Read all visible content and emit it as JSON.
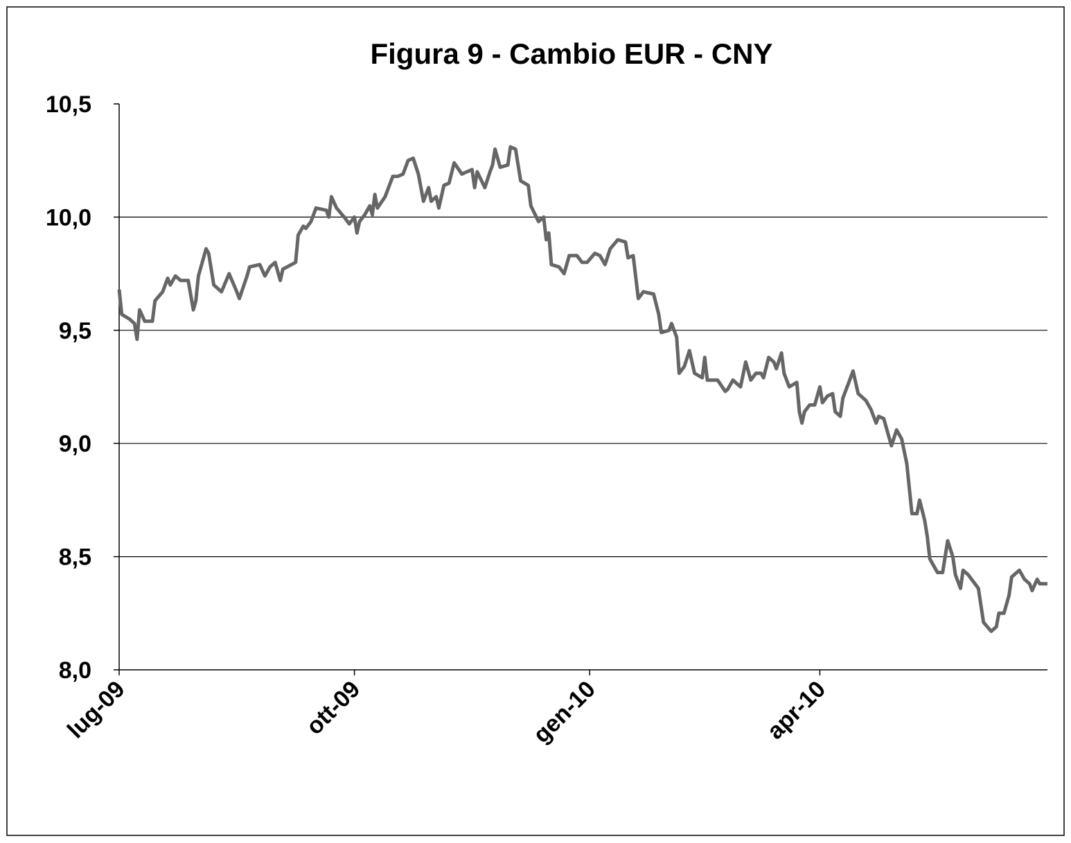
{
  "chart_data": {
    "type": "line",
    "title": "Figura 9 - Cambio EUR - CNY",
    "x": [
      0,
      1,
      4,
      6,
      7,
      8,
      10,
      13,
      14,
      17,
      19,
      20,
      22,
      24,
      27,
      29,
      30,
      31,
      34,
      35,
      37,
      40,
      43,
      46,
      47,
      50,
      51,
      55,
      57,
      59,
      61,
      63,
      64,
      69,
      70,
      72,
      73,
      75,
      77,
      81,
      82,
      83,
      85,
      88,
      90,
      92,
      93,
      94,
      96,
      98,
      99,
      100,
      101,
      104,
      106,
      107,
      109,
      111,
      113,
      115,
      117,
      119,
      121,
      122,
      124,
      125,
      127,
      129,
      131,
      134,
      136,
      138,
      139,
      140,
      143,
      145,
      146,
      147,
      149,
      152,
      153,
      155,
      157,
      160,
      161,
      164,
      166,
      167,
      168,
      169,
      172,
      174,
      176,
      179,
      181,
      183,
      186,
      188,
      190,
      192,
      195,
      198,
      199,
      201,
      203,
      205,
      209,
      211,
      212,
      215,
      216,
      218,
      219,
      221,
      223,
      225,
      228,
      229,
      230,
      233,
      234,
      237,
      238,
      240,
      241,
      243,
      245,
      247,
      249,
      251,
      252,
      254,
      256,
      257,
      259,
      260,
      262,
      265,
      266,
      267,
      268,
      270,
      272,
      274,
      275,
      277,
      279,
      280,
      282,
      283,
      285,
      287,
      289,
      292,
      294,
      296,
      297,
      299,
      302,
      304,
      306,
      308,
      309,
      310,
      312,
      313,
      315,
      316,
      317,
      320,
      322,
      324,
      326,
      327,
      329,
      330,
      332,
      334,
      336,
      338,
      341,
      343,
      344,
      346,
      348,
      349,
      350,
      352,
      354,
      356,
      357,
      359,
      360,
      363
    ],
    "series": [
      {
        "color": "#666666",
        "values": [
          9.68,
          9.57,
          9.55,
          9.53,
          9.46,
          9.59,
          9.54,
          9.54,
          9.63,
          9.67,
          9.73,
          9.7,
          9.74,
          9.72,
          9.72,
          9.59,
          9.63,
          9.74,
          9.86,
          9.84,
          9.7,
          9.67,
          9.75,
          9.67,
          9.64,
          9.74,
          9.78,
          9.79,
          9.74,
          9.78,
          9.8,
          9.72,
          9.77,
          9.8,
          9.92,
          9.96,
          9.95,
          9.98,
          10.04,
          10.03,
          10.0,
          10.09,
          10.04,
          10.0,
          9.97,
          10.0,
          9.93,
          9.98,
          10.01,
          10.05,
          10.01,
          10.1,
          10.04,
          10.09,
          10.15,
          10.18,
          10.18,
          10.19,
          10.25,
          10.26,
          10.19,
          10.07,
          10.13,
          10.07,
          10.09,
          10.04,
          10.14,
          10.15,
          10.24,
          10.19,
          10.2,
          10.21,
          10.13,
          10.2,
          10.13,
          10.2,
          10.23,
          10.3,
          10.22,
          10.23,
          10.31,
          10.3,
          10.16,
          10.14,
          10.05,
          9.98,
          10.0,
          9.9,
          9.93,
          9.79,
          9.78,
          9.75,
          9.83,
          9.83,
          9.8,
          9.8,
          9.84,
          9.83,
          9.79,
          9.86,
          9.9,
          9.89,
          9.82,
          9.83,
          9.64,
          9.67,
          9.66,
          9.57,
          9.49,
          9.5,
          9.53,
          9.47,
          9.31,
          9.34,
          9.41,
          9.31,
          9.29,
          9.38,
          9.28,
          9.28,
          9.28,
          9.23,
          9.24,
          9.28,
          9.27,
          9.25,
          9.36,
          9.28,
          9.31,
          9.31,
          9.29,
          9.38,
          9.36,
          9.33,
          9.4,
          9.31,
          9.25,
          9.27,
          9.14,
          9.09,
          9.14,
          9.17,
          9.17,
          9.25,
          9.18,
          9.21,
          9.22,
          9.14,
          9.12,
          9.2,
          9.26,
          9.32,
          9.22,
          9.19,
          9.15,
          9.09,
          9.12,
          9.11,
          8.99,
          9.06,
          9.02,
          8.91,
          8.8,
          8.69,
          8.69,
          8.75,
          8.66,
          8.59,
          8.49,
          8.43,
          8.43,
          8.57,
          8.5,
          8.42,
          8.36,
          8.44,
          8.42,
          8.39,
          8.36,
          8.21,
          8.17,
          8.19,
          8.25,
          8.25,
          8.33,
          8.41,
          8.42,
          8.44,
          8.4,
          8.38,
          8.35,
          8.4,
          8.38,
          8.38
        ]
      }
    ],
    "xlim": [
      0,
      363
    ],
    "xticks": [
      {
        "value": 0,
        "label": "lug-09"
      },
      {
        "value": 92,
        "label": "ott-09"
      },
      {
        "value": 184,
        "label": "gen-10"
      },
      {
        "value": 274,
        "label": "apr-10"
      }
    ],
    "ylim": [
      8,
      10.5
    ],
    "yticks": [
      {
        "value": 8,
        "label": "8,0"
      },
      {
        "value": 8.5,
        "label": "8,5"
      },
      {
        "value": 9,
        "label": "9,0"
      },
      {
        "value": 9.5,
        "label": "9,5"
      },
      {
        "value": 10,
        "label": "10,0"
      },
      {
        "value": 10.5,
        "label": "10,5"
      }
    ],
    "grid": true
  }
}
